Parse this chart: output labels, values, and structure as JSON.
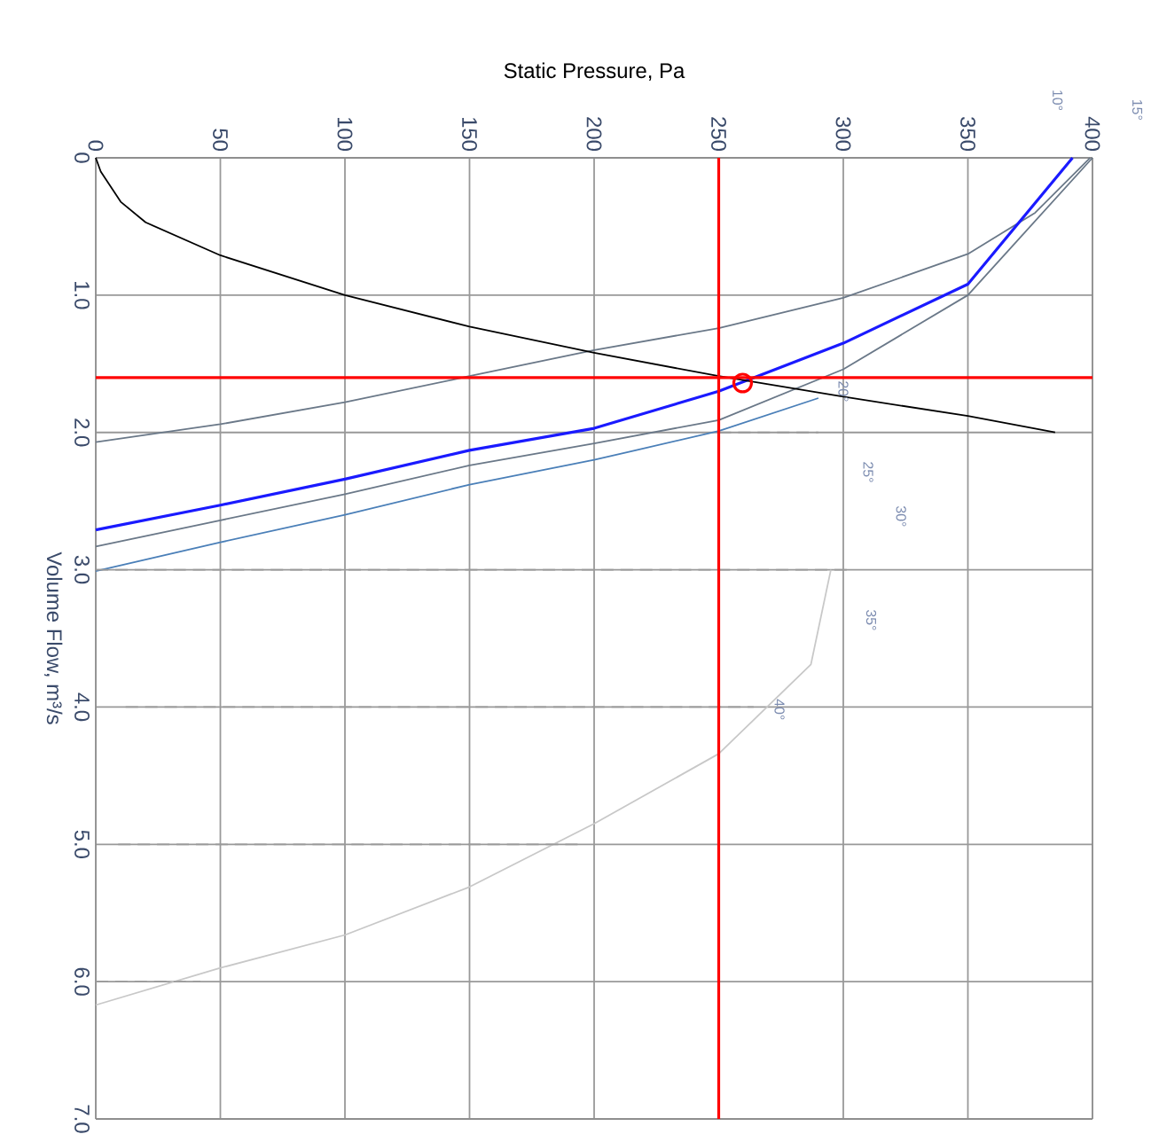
{
  "chart_data": {
    "type": "line",
    "xlabel": "Static Pressure, Pa",
    "ylabel": "Volume Flow, m³/s",
    "xlim": [
      0,
      400
    ],
    "xticks": [
      0,
      50,
      100,
      150,
      200,
      250,
      300,
      350,
      400
    ],
    "ylim": [
      7,
      0
    ],
    "yticks": [
      0,
      {
        "value": 1,
        "label": "1.0"
      },
      {
        "value": 2,
        "label": "2.0"
      },
      {
        "value": 3,
        "label": "3.0"
      },
      {
        "value": 4,
        "label": "4.0"
      },
      {
        "value": 5,
        "label": "5.0"
      },
      {
        "value": 6,
        "label": "6.0"
      },
      {
        "value": 7,
        "label": "7.0"
      }
    ],
    "grid": true,
    "series": [
      {
        "color": "#c8c8c8",
        "x": [
          0,
          50,
          100,
          150,
          200,
          250,
          287,
          295
        ],
        "values": [
          6.17,
          5.9,
          5.66,
          5.31,
          4.85,
          4.34,
          3.69,
          3.0
        ]
      },
      {
        "color": "#4a7fb8",
        "x": [
          0,
          50,
          100,
          150,
          200,
          250,
          290
        ],
        "values": [
          3.01,
          2.8,
          2.6,
          2.38,
          2.2,
          1.99,
          1.75
        ]
      },
      {
        "color": "#6a7888",
        "x": [
          0,
          50,
          100,
          150,
          200,
          250,
          300,
          350,
          400
        ],
        "values": [
          2.83,
          2.64,
          2.45,
          2.24,
          2.08,
          1.91,
          1.54,
          1.0,
          0
        ]
      },
      {
        "color": "#6a7888",
        "x": [
          0,
          50,
          100,
          150,
          200,
          250,
          300,
          350,
          377,
          399
        ],
        "values": [
          2.07,
          1.94,
          1.78,
          1.59,
          1.4,
          1.24,
          1.02,
          0.7,
          0.4,
          0
        ]
      },
      {
        "color": "#1a1aff",
        "x": [
          0,
          50,
          100,
          150,
          200,
          250,
          300,
          350,
          392
        ],
        "values": [
          2.71,
          2.53,
          2.34,
          2.13,
          1.97,
          1.7,
          1.35,
          0.92,
          0
        ]
      },
      {
        "color": "#000000",
        "x": [
          0,
          2,
          10,
          20,
          50,
          100,
          150,
          200,
          250,
          300,
          350,
          385
        ],
        "values": [
          0,
          0.1,
          0.32,
          0.47,
          0.71,
          1.0,
          1.23,
          1.42,
          1.59,
          1.74,
          1.88,
          2.0
        ]
      },
      {
        "color": "#9a9a9a",
        "line_style": "dashed",
        "x": [
          250,
          290
        ],
        "values": [
          2.0,
          2.0
        ]
      },
      {
        "color": "#9a9a9a",
        "line_style": "dashed",
        "x": [
          0,
          302
        ],
        "values": [
          3.0,
          3.0
        ]
      },
      {
        "color": "#9a9a9a",
        "line_style": "dashed",
        "x": [
          12,
          264
        ],
        "values": [
          4.0,
          4.0
        ]
      },
      {
        "color": "#9a9a9a",
        "line_style": "dashed",
        "x": [
          9,
          196
        ],
        "values": [
          5.0,
          5.0
        ]
      },
      {
        "color": "#9a9a9a",
        "line_style": "dashed",
        "x": [
          0,
          42
        ],
        "values": [
          6.0,
          6.0
        ]
      },
      {
        "type": "scatter",
        "marker": "circle",
        "color": "#ff0000",
        "x": [
          259.6
        ],
        "values": [
          1.64
        ]
      }
    ],
    "ref_lines": [
      {
        "axis": "x",
        "value": 250,
        "color": "#ff0000"
      },
      {
        "axis": "y",
        "value": 1.6,
        "color": "#ff0000"
      }
    ],
    "annotations": [
      "10°",
      "15°",
      "20°",
      "25°",
      "30°",
      "35°",
      "40°"
    ]
  }
}
